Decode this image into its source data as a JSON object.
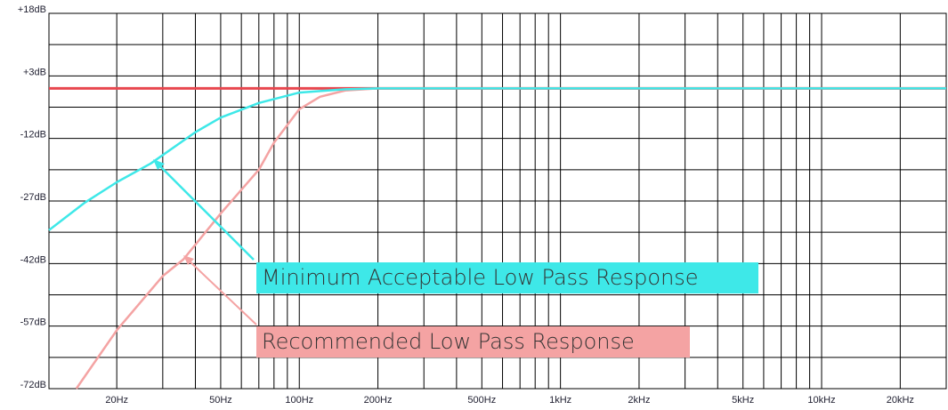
{
  "chart_data": {
    "type": "line",
    "xscale": "log",
    "grid": true,
    "xlim": [
      11,
      30000
    ],
    "ylim": [
      -72,
      18
    ],
    "yticks": [
      {
        "value": 18,
        "label": "+18dB"
      },
      {
        "value": 3,
        "label": "+3dB"
      },
      {
        "value": -12,
        "label": "-12dB"
      },
      {
        "value": -27,
        "label": "-27dB"
      },
      {
        "value": -42,
        "label": "-42dB"
      },
      {
        "value": -57,
        "label": "-57dB"
      },
      {
        "value": -72,
        "label": "-72dB"
      }
    ],
    "ygrid_minor": [
      10.5,
      -4.5,
      -19.5,
      -34.5,
      -49.5,
      -64.5
    ],
    "xticks": [
      {
        "value": 20,
        "label": "20Hz"
      },
      {
        "value": 50,
        "label": "50Hz"
      },
      {
        "value": 100,
        "label": "100Hz"
      },
      {
        "value": 200,
        "label": "200Hz"
      },
      {
        "value": 500,
        "label": "500Hz"
      },
      {
        "value": 1000,
        "label": "1kHz"
      },
      {
        "value": 2000,
        "label": "2kHz"
      },
      {
        "value": 5000,
        "label": "5kHz"
      },
      {
        "value": 10000,
        "label": "10kHz"
      },
      {
        "value": 20000,
        "label": "20kHz"
      }
    ],
    "xgrid_minor": [
      30,
      40,
      60,
      70,
      80,
      90,
      300,
      400,
      600,
      700,
      800,
      900,
      3000,
      4000,
      6000,
      7000,
      8000,
      9000
    ],
    "series": [
      {
        "color": "#e8474f",
        "width": 3,
        "x": [
          11,
          30000
        ],
        "values": [
          0,
          0
        ]
      },
      {
        "color": "#f4a3a3",
        "width": 2.5,
        "x": [
          14,
          20,
          30,
          36,
          50,
          70,
          80,
          100,
          120,
          150,
          200,
          30000
        ],
        "values": [
          -72,
          -58,
          -45,
          -41,
          -30,
          -19.5,
          -13,
          -5,
          -2,
          -0.5,
          0,
          0
        ]
      },
      {
        "color": "#3ee8e8",
        "width": 2.5,
        "x": [
          11,
          15,
          20,
          27,
          40,
          50,
          70,
          100,
          150,
          200,
          30000
        ],
        "values": [
          -34,
          -27.5,
          -22.5,
          -18,
          -10.5,
          -7,
          -3.5,
          -1,
          -0.2,
          0,
          0
        ]
      }
    ],
    "annotations": [
      {
        "text": "Minimum Acceptable Low Pass Response",
        "color": "#3ee8e8"
      },
      {
        "text": "Recommended Low Pass Response",
        "color": "#f4a3a3"
      }
    ]
  }
}
